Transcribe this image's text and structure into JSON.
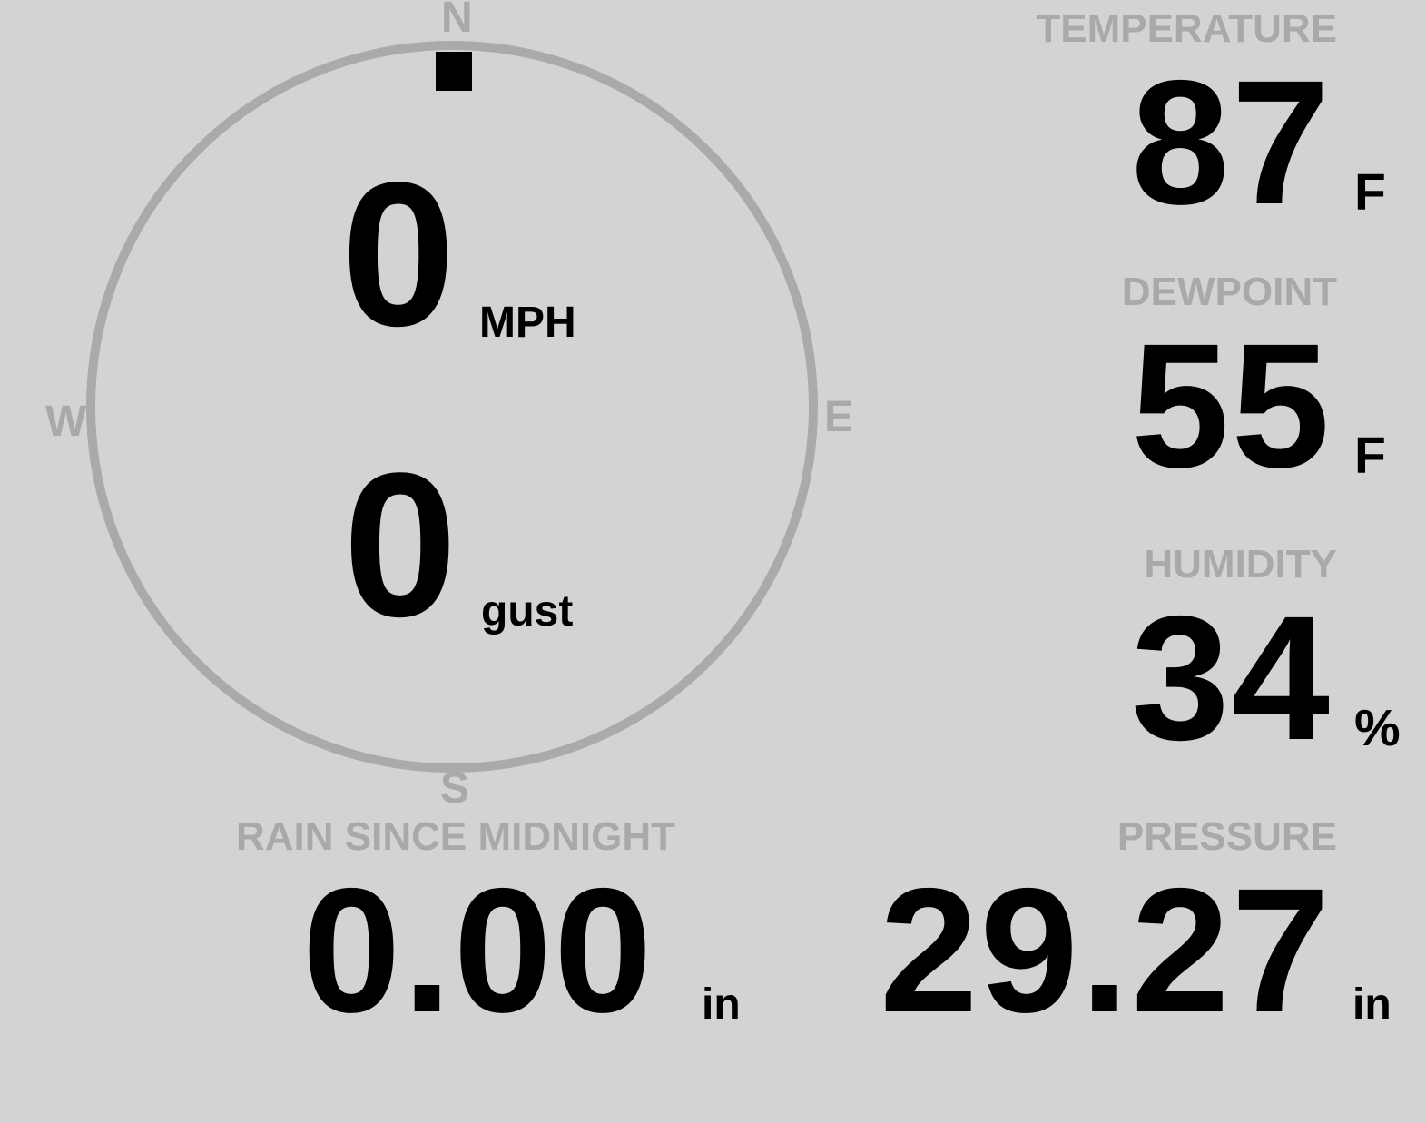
{
  "wind": {
    "speed": "0",
    "speed_unit": "MPH",
    "gust": "0",
    "gust_unit": "gust",
    "direction_deg": 0,
    "compass": {
      "n": "N",
      "e": "E",
      "s": "S",
      "w": "W"
    }
  },
  "temperature": {
    "label": "TEMPERATURE",
    "value": "87",
    "unit": "F"
  },
  "dewpoint": {
    "label": "DEWPOINT",
    "value": "55",
    "unit": "F"
  },
  "humidity": {
    "label": "HUMIDITY",
    "value": "34",
    "unit": "%"
  },
  "pressure": {
    "label": "PRESSURE",
    "value": "29.27",
    "unit": "in"
  },
  "rain": {
    "label": "RAIN SINCE MIDNIGHT",
    "value": "0.00",
    "unit": "in"
  },
  "colors": {
    "background": "#d3d3d3",
    "label": "#a9a9a9",
    "value": "#000000",
    "dial": "#aaaaaa"
  }
}
